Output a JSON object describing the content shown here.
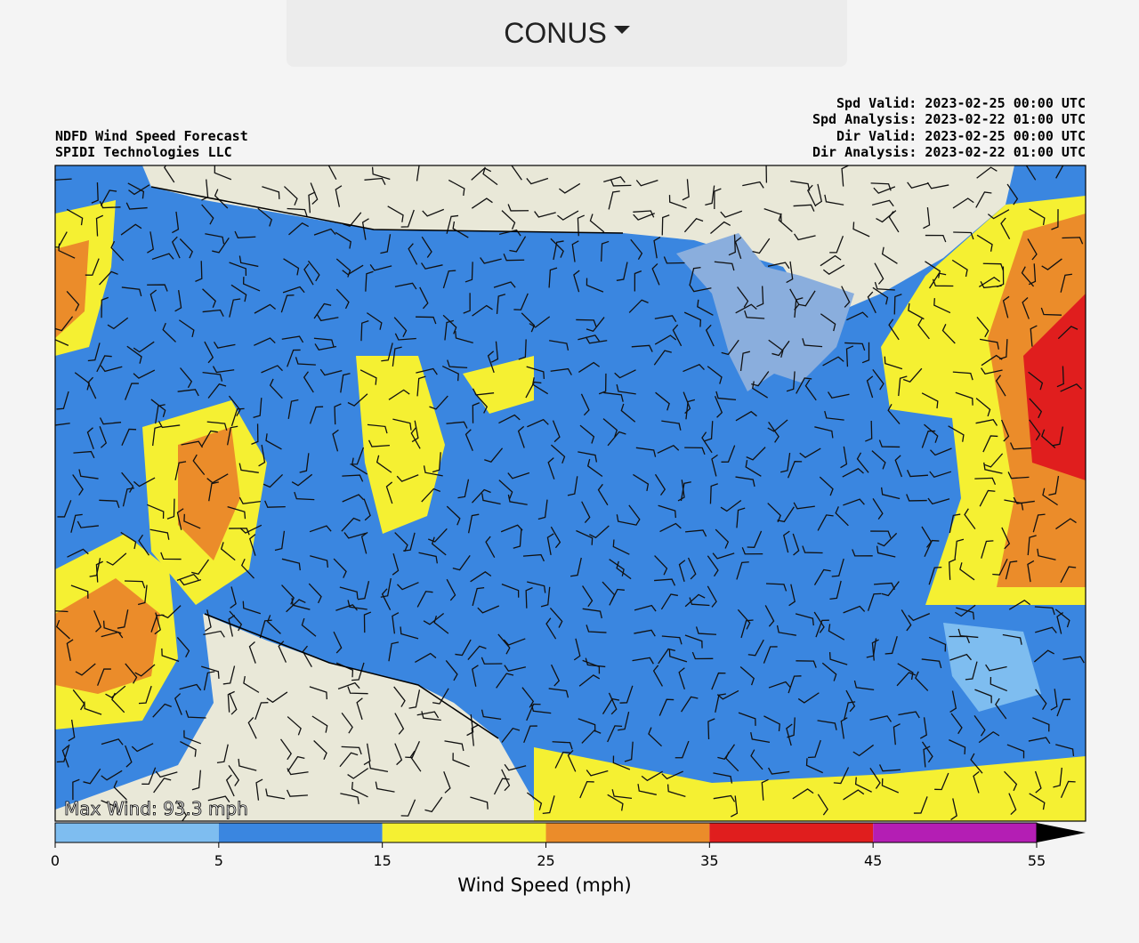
{
  "header": {
    "region": "CONUS"
  },
  "map": {
    "title_lines": [
      "NDFD Wind Speed Forecast",
      "SPIDI Technologies LLC"
    ],
    "time_lines": [
      "Spd Valid: 2023-02-25 00:00 UTC",
      "Spd Analysis: 2023-02-22 01:00 UTC",
      "Dir Valid: 2023-02-25 00:00 UTC",
      "Dir Analysis: 2023-02-22 01:00 UTC"
    ],
    "max_wind": "Max Wind: 93.3 mph"
  },
  "colorbar": {
    "label": "Wind Speed (mph)",
    "ticks": [
      0,
      5,
      15,
      25,
      35,
      45,
      55
    ],
    "colors": [
      "#7ebdf0",
      "#3a86e0",
      "#f5f032",
      "#eb8c2a",
      "#e01e1e",
      "#b41eb4"
    ]
  }
}
